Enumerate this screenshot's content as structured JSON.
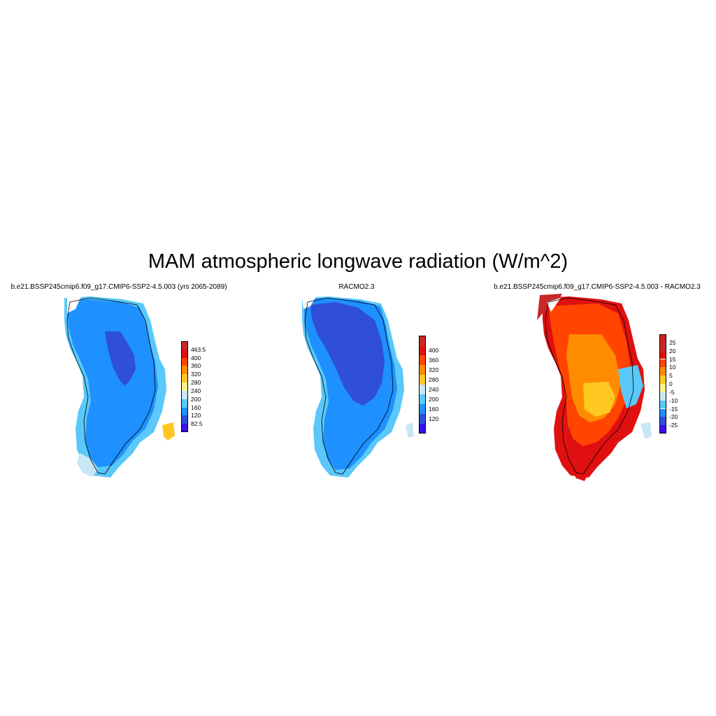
{
  "figure": {
    "title": "MAM atmospheric longwave radiation (W/m^2)"
  },
  "panels": [
    {
      "title": "b.e21.BSSP245cmip6.f09_g17.CMIP6-SSP2-4.5.003 (yrs 2065-2089)",
      "icon": "greenland-map-icon",
      "colorbar": {
        "colors": [
          "#3a10e8",
          "#2f4fd8",
          "#1e90ff",
          "#5ac8fa",
          "#c8e6f5",
          "#fff08a",
          "#ffc820",
          "#ff8c00",
          "#ff4500",
          "#e01010",
          "#c82828"
        ],
        "labels": [
          "463.5",
          "400",
          "360",
          "320",
          "280",
          "240",
          "200",
          "160",
          "120",
          "82.5"
        ]
      }
    },
    {
      "title": "RACMO2.3",
      "icon": "greenland-map-icon",
      "colorbar": {
        "colors": [
          "#3a10e8",
          "#2f4fd8",
          "#1e90ff",
          "#5ac8fa",
          "#c8e6f5",
          "#ffc820",
          "#ff8c00",
          "#ff4500",
          "#e01010",
          "#c82828"
        ],
        "labels": [
          "400",
          "360",
          "320",
          "280",
          "240",
          "200",
          "160",
          "120"
        ]
      }
    },
    {
      "title": "b.e21.BSSP245cmip6.f09_g17.CMIP6-SSP2-4.5.003 - RACMO2.3",
      "icon": "greenland-map-icon",
      "colorbar": {
        "colors": [
          "#3a10e8",
          "#2f4fd8",
          "#1e90ff",
          "#5ac8fa",
          "#c8e6f5",
          "#fff08a",
          "#ffc820",
          "#ff8c00",
          "#ff4500",
          "#e01010",
          "#c82828",
          "#d02020"
        ],
        "labels": [
          "25",
          "20",
          "15",
          "10",
          "5",
          "0",
          "-5",
          "-10",
          "-15",
          "-20",
          "-25"
        ]
      }
    }
  ]
}
